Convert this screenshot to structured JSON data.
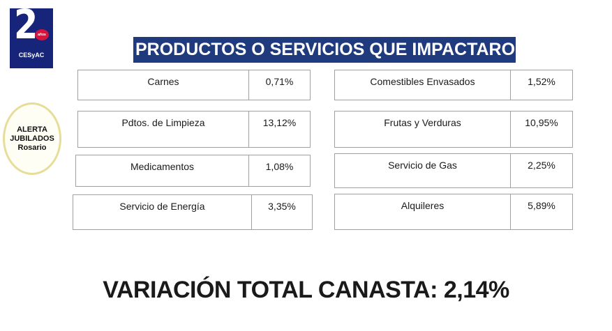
{
  "logo": {
    "number": "2",
    "badge": "años",
    "org": "CESyAC"
  },
  "alert": {
    "line1": "ALERTA",
    "line2": "JUBILADOS",
    "line3": "Rosario"
  },
  "title": "PRODUCTOS O SERVICIOS QUE IMPACTARON",
  "items": [
    {
      "label": "Carnes",
      "value": "0,71%"
    },
    {
      "label": "Comestibles Envasados",
      "value": "1,52%"
    },
    {
      "label": "Pdtos. de Limpieza",
      "value": "13,12%"
    },
    {
      "label": "Frutas y Verduras",
      "value": "10,95%"
    },
    {
      "label": "Medicamentos",
      "value": "1,08%"
    },
    {
      "label": "Servicio de Gas",
      "value": "2,25%"
    },
    {
      "label": "Servicio de Energía",
      "value": "3,35%"
    },
    {
      "label": "Alquileres",
      "value": "5,89%"
    }
  ],
  "total": "VARIACIÓN TOTAL CANASTA: 2,14%"
}
